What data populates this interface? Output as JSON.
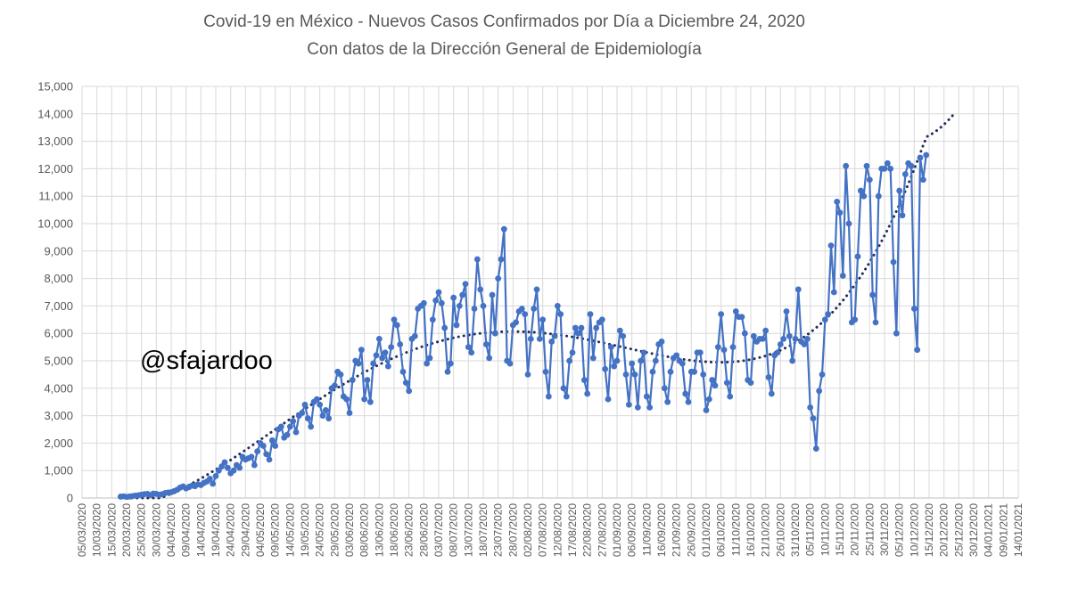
{
  "chart_data": {
    "type": "line",
    "title": "Covid-19 en México - Nuevos Casos Confirmados por Día a Diciembre 24, 2020",
    "subtitle": "Con datos de la Dirección General de Epidemiología",
    "watermark": "@sfajardoo",
    "xlabel": "",
    "ylabel": "",
    "ylim": [
      0,
      15000
    ],
    "xlim": [
      "2020-03-05",
      "2021-01-14"
    ],
    "y_ticks": [
      "0",
      "1,000",
      "2,000",
      "3,000",
      "4,000",
      "5,000",
      "6,000",
      "7,000",
      "8,000",
      "9,000",
      "10,000",
      "11,000",
      "12,000",
      "13,000",
      "14,000",
      "15,000"
    ],
    "x_ticks": [
      "05/03/2020",
      "10/03/2020",
      "15/03/2020",
      "20/03/2020",
      "25/03/2020",
      "30/03/2020",
      "04/04/2020",
      "09/04/2020",
      "14/04/2020",
      "19/04/2020",
      "24/04/2020",
      "29/04/2020",
      "04/05/2020",
      "09/05/2020",
      "14/05/2020",
      "19/05/2020",
      "24/05/2020",
      "29/05/2020",
      "03/06/2020",
      "08/06/2020",
      "13/06/2020",
      "18/06/2020",
      "23/06/2020",
      "28/06/2020",
      "03/07/2020",
      "08/07/2020",
      "13/07/2020",
      "18/07/2020",
      "23/07/2020",
      "28/07/2020",
      "02/08/2020",
      "07/08/2020",
      "12/08/2020",
      "17/08/2020",
      "22/08/2020",
      "27/08/2020",
      "01/09/2020",
      "06/09/2020",
      "11/09/2020",
      "16/09/2020",
      "21/09/2020",
      "26/09/2020",
      "01/10/2020",
      "06/10/2020",
      "11/10/2020",
      "16/10/2020",
      "21/10/2020",
      "26/10/2020",
      "31/10/2020",
      "05/11/2020",
      "10/11/2020",
      "15/11/2020",
      "20/11/2020",
      "25/11/2020",
      "30/11/2020",
      "05/12/2020",
      "10/12/2020",
      "15/12/2020",
      "20/12/2020",
      "25/12/2020",
      "30/12/2020",
      "04/01/2021",
      "09/01/2021",
      "14/01/2021"
    ],
    "grid": true,
    "legend": "none",
    "colors": {
      "series": "#4472C4",
      "trend": "#1F2D5A",
      "grid": "#D9D9D9",
      "text": "#595959"
    },
    "series": [
      {
        "x_start": "2020-03-18",
        "values": [
          50,
          60,
          40,
          55,
          70,
          90,
          100,
          120,
          140,
          150,
          110,
          160,
          150,
          120,
          140,
          180,
          200,
          210,
          250,
          300,
          380,
          420,
          350,
          400,
          450,
          430,
          500,
          470,
          550,
          600,
          700,
          520,
          800,
          1000,
          1150,
          1300,
          1100,
          900,
          1000,
          1200,
          1100,
          1500,
          1400,
          1450,
          1500,
          1200,
          1700,
          2000,
          1900,
          1600,
          1400,
          2100,
          1900,
          2500,
          2600,
          2200,
          2300,
          2600,
          2800,
          2400,
          3000,
          3100,
          3400,
          2900,
          2600,
          3500,
          3600,
          3400,
          3000,
          3200,
          2900,
          4000,
          4100,
          4600,
          4500,
          3700,
          3600,
          3100,
          4300,
          5000,
          4900,
          5400,
          3600,
          4300,
          3500,
          4900,
          5200,
          5800,
          5100,
          5300,
          4800,
          5500,
          6500,
          6300,
          5600,
          4600,
          4200,
          3900,
          5800,
          5900,
          6900,
          7000,
          7100,
          4900,
          5100,
          6500,
          7200,
          7500,
          7100,
          6200,
          4600,
          4900,
          7300,
          6300,
          7000,
          7400,
          7800,
          5500,
          5300,
          6900,
          8700,
          7600,
          7000,
          5600,
          5100,
          7400,
          6000,
          8000,
          8700,
          9800,
          5000,
          4900,
          6300,
          6400,
          6800,
          6900,
          6700,
          4500,
          5800,
          6900,
          7600,
          5800,
          6500,
          4600,
          3700,
          5700,
          5900,
          7000,
          6700,
          4000,
          3700,
          5000,
          5300,
          6200,
          6000,
          6200,
          4300,
          3800,
          6700,
          5100,
          6200,
          6400,
          6500,
          4700,
          3600,
          5500,
          4800,
          5000,
          6100,
          5900,
          4500,
          3400,
          4900,
          4500,
          3300,
          5000,
          5300,
          3700,
          3300,
          4600,
          5000,
          5600,
          5700,
          4000,
          3500,
          4600,
          5100,
          5200,
          5000,
          4900,
          3800,
          3500,
          4600,
          4600,
          5300,
          5300,
          4500,
          3200,
          3600,
          4300,
          4100,
          5500,
          6700,
          5400,
          4200,
          3700,
          5500,
          6800,
          6600,
          6600,
          6000,
          4300,
          4200,
          5900,
          5700,
          5800,
          5800,
          6100,
          4400,
          3800,
          5200,
          5300,
          5600,
          5800,
          6800,
          5900,
          5000,
          5800,
          7600,
          5700,
          5600,
          5800,
          3300,
          2900,
          1800,
          3900,
          4500,
          6500,
          6700,
          9200,
          7500,
          10800,
          10400,
          8100,
          12100,
          10000,
          6400,
          6500,
          8800,
          11200,
          11000,
          12100,
          11600,
          7400,
          6400,
          11000,
          12000,
          12000,
          12200,
          12000,
          8600,
          6000,
          11200,
          10300,
          11800,
          12200,
          12100,
          6900,
          5400,
          12400,
          11600,
          12500
        ]
      }
    ],
    "trend": {
      "type": "polynomial",
      "x_end": "2020-12-23",
      "y_end": 13950
    }
  }
}
